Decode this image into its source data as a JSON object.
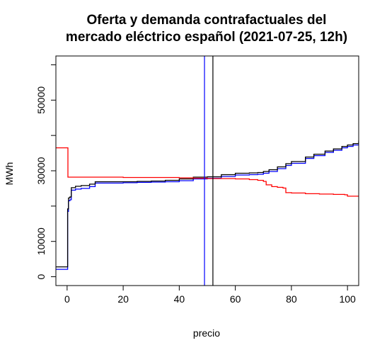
{
  "chart_data": {
    "type": "line",
    "title_lines": [
      "Oferta y demanda contrafactuales del",
      "mercado eléctrico español (2021-07-25, 12h)"
    ],
    "xlabel": "precio",
    "ylabel": "MWh",
    "xlim": [
      -4,
      104
    ],
    "ylim": [
      -2500,
      62500
    ],
    "x_ticks": [
      0,
      20,
      40,
      60,
      80,
      100
    ],
    "y_ticks": [
      0,
      10000,
      20000,
      30000,
      40000,
      50000,
      60000
    ],
    "y_tick_labels_shown": {
      "0": "0",
      "10000": "10000",
      "30000": "30000",
      "50000": "50000"
    },
    "grid": false,
    "series": [
      {
        "color": "#0000ff",
        "line_type": "step",
        "points": [
          [
            -4,
            2100
          ],
          [
            0,
            2100
          ],
          [
            0.2,
            18500
          ],
          [
            0.5,
            21500
          ],
          [
            1,
            21800
          ],
          [
            1.5,
            24500
          ],
          [
            3,
            24800
          ],
          [
            5,
            25000
          ],
          [
            8,
            25500
          ],
          [
            10,
            26500
          ],
          [
            15,
            26500
          ],
          [
            20,
            26600
          ],
          [
            25,
            26700
          ],
          [
            30,
            26800
          ],
          [
            35,
            26900
          ],
          [
            40,
            27200
          ],
          [
            45,
            27700
          ],
          [
            50,
            27900
          ],
          [
            55,
            28400
          ],
          [
            60,
            28800
          ],
          [
            65,
            28900
          ],
          [
            68,
            29000
          ],
          [
            70,
            29300
          ],
          [
            72,
            29800
          ],
          [
            75,
            30600
          ],
          [
            78,
            31500
          ],
          [
            80,
            32100
          ],
          [
            85,
            33500
          ],
          [
            88,
            34300
          ],
          [
            92,
            35200
          ],
          [
            95,
            35800
          ],
          [
            98,
            36500
          ],
          [
            100,
            36900
          ],
          [
            102,
            37300
          ],
          [
            104,
            38200
          ]
        ]
      },
      {
        "color": "#000000",
        "line_type": "step",
        "points": [
          [
            -4,
            2800
          ],
          [
            0,
            2800
          ],
          [
            0.2,
            19200
          ],
          [
            0.5,
            22300
          ],
          [
            1,
            22600
          ],
          [
            1.5,
            25200
          ],
          [
            3,
            25600
          ],
          [
            5,
            25800
          ],
          [
            8,
            26200
          ],
          [
            10,
            26900
          ],
          [
            15,
            26900
          ],
          [
            20,
            26900
          ],
          [
            25,
            27000
          ],
          [
            30,
            27100
          ],
          [
            35,
            27300
          ],
          [
            40,
            27700
          ],
          [
            45,
            28200
          ],
          [
            50,
            28300
          ],
          [
            55,
            28900
          ],
          [
            60,
            29300
          ],
          [
            65,
            29400
          ],
          [
            68,
            29500
          ],
          [
            70,
            29800
          ],
          [
            72,
            30300
          ],
          [
            75,
            31100
          ],
          [
            78,
            32000
          ],
          [
            80,
            32600
          ],
          [
            85,
            33900
          ],
          [
            88,
            34700
          ],
          [
            92,
            35600
          ],
          [
            95,
            36200
          ],
          [
            98,
            36900
          ],
          [
            100,
            37300
          ],
          [
            102,
            37700
          ],
          [
            104,
            38600
          ]
        ]
      },
      {
        "color": "#ff0000",
        "line_type": "step",
        "points": [
          [
            -4,
            36500
          ],
          [
            0,
            36500
          ],
          [
            0.3,
            28200
          ],
          [
            10,
            28200
          ],
          [
            20,
            28100
          ],
          [
            30,
            28100
          ],
          [
            40,
            28000
          ],
          [
            45,
            27900
          ],
          [
            50,
            27800
          ],
          [
            55,
            27800
          ],
          [
            60,
            27700
          ],
          [
            65,
            27500
          ],
          [
            68,
            27300
          ],
          [
            70,
            27000
          ],
          [
            71,
            26000
          ],
          [
            73,
            25500
          ],
          [
            75,
            25300
          ],
          [
            77,
            25100
          ],
          [
            78,
            23800
          ],
          [
            80,
            23700
          ],
          [
            85,
            23500
          ],
          [
            90,
            23400
          ],
          [
            95,
            23300
          ],
          [
            99,
            23200
          ],
          [
            100,
            22800
          ],
          [
            104,
            22800
          ]
        ]
      }
    ],
    "vertical_lines": [
      {
        "x": 49,
        "color": "#0000ff"
      },
      {
        "x": 52,
        "color": "#000000"
      }
    ]
  }
}
